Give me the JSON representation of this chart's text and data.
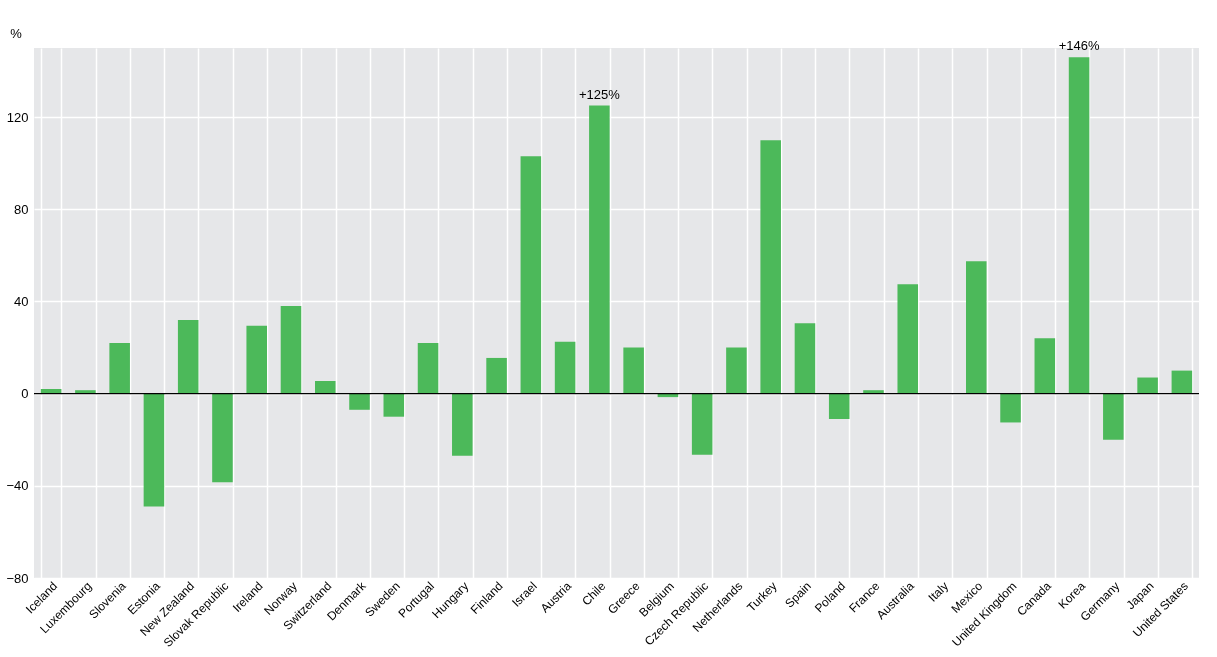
{
  "chart_data": {
    "type": "bar",
    "ylabel": "%",
    "categories": [
      "Iceland",
      "Luxembourg",
      "Slovenia",
      "Estonia",
      "New Zealand",
      "Slovak Republic",
      "Ireland",
      "Norway",
      "Switzerland",
      "Denmark",
      "Sweden",
      "Portugal",
      "Hungary",
      "Finland",
      "Israel",
      "Austria",
      "Chile",
      "Greece",
      "Belgium",
      "Czech Republic",
      "Netherlands",
      "Turkey",
      "Spain",
      "Poland",
      "France",
      "Australia",
      "Italy",
      "Mexico",
      "United Kingdom",
      "Canada",
      "Korea",
      "Germany",
      "Japan",
      "United States"
    ],
    "values": [
      2,
      1.5,
      22,
      -49,
      32,
      -38.5,
      29.5,
      38,
      5.5,
      -7,
      -10,
      22,
      -27,
      15.5,
      103,
      22.5,
      125,
      20,
      -1.5,
      -26.5,
      20,
      110,
      30.5,
      -11,
      1.5,
      47.5,
      0,
      57.5,
      -12.5,
      24,
      146,
      -20,
      7,
      10
    ],
    "value_labels": [
      null,
      null,
      null,
      null,
      null,
      null,
      null,
      null,
      null,
      null,
      null,
      null,
      null,
      null,
      null,
      null,
      "+125%",
      null,
      null,
      null,
      null,
      null,
      null,
      null,
      null,
      null,
      null,
      null,
      null,
      null,
      "+146%",
      null,
      null,
      null
    ],
    "color": "#4cb95a",
    "ylim": [
      -80,
      150
    ],
    "yticks": [
      -80,
      -40,
      0,
      40,
      80,
      120
    ],
    "ref_lines": [
      {
        "axis": "y",
        "value": 0,
        "color": "#000000"
      }
    ],
    "grid": true
  }
}
